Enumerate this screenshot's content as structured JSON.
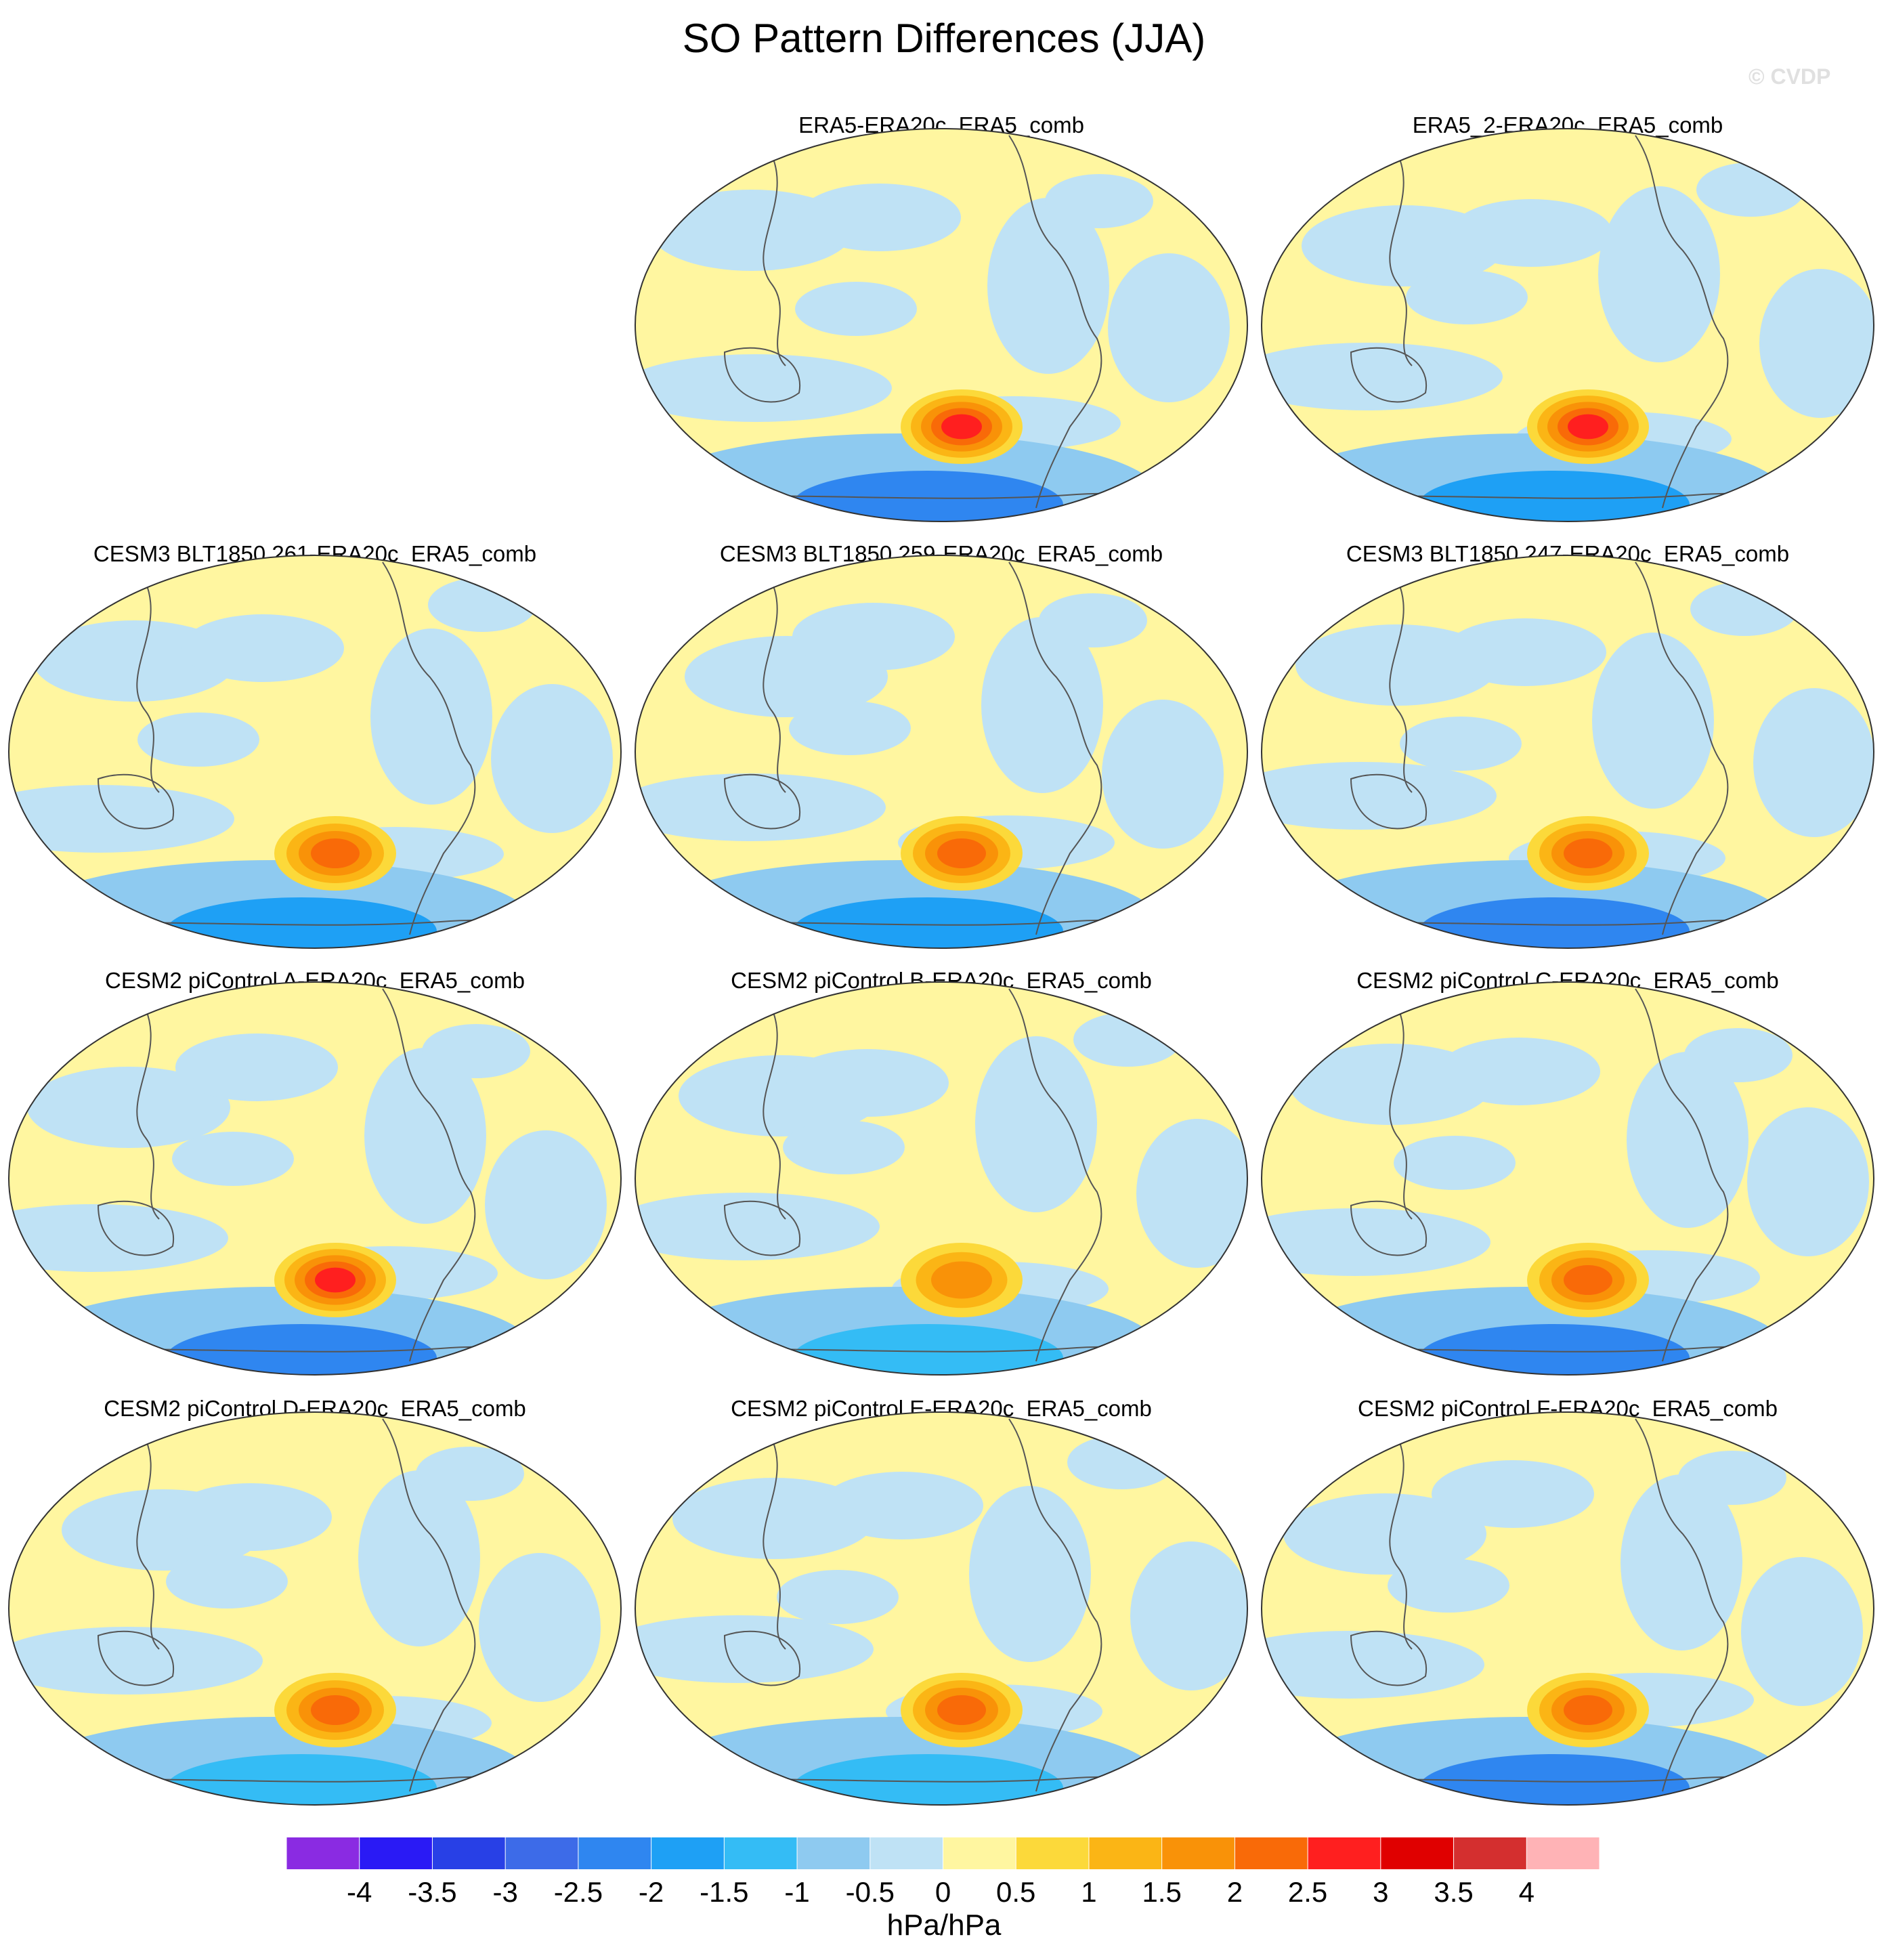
{
  "title": "SO Pattern Differences (JJA)",
  "copyright": "© CVDP",
  "chart_data": {
    "type": "heatmap",
    "title": "SO Pattern Differences (JJA)",
    "units": "hPa/hPa",
    "colorbar": {
      "tick_labels": [
        "-4",
        "-3.5",
        "-3",
        "-2.5",
        "-2",
        "-1.5",
        "-1",
        "-0.5",
        "0",
        "0.5",
        "1",
        "1.5",
        "2",
        "2.5",
        "3",
        "3.5",
        "4"
      ],
      "colors": [
        "#8a2be2",
        "#2a1af5",
        "#2840e6",
        "#3d6be8",
        "#2f86f0",
        "#1ea0f5",
        "#34bcf5",
        "#8ecaf0",
        "#bfe2f5",
        "#fff6a0",
        "#fcd93a",
        "#fbb515",
        "#f99208",
        "#f96a08",
        "#ff1f1f",
        "#e00000",
        "#d42f2f",
        "#ffb3b6"
      ]
    },
    "panels": [
      {
        "title": "ERA5-ERA20c_ERA5_comb",
        "peak_positive": 2.3,
        "peak_negative": -1.9
      },
      {
        "title": "ERA5_2-ERA20c_ERA5_comb",
        "peak_positive": 2.5,
        "peak_negative": -1.7
      },
      {
        "title": "CESM3 BLT1850 261-ERA20c_ERA5_comb",
        "peak_positive": 2.2,
        "peak_negative": -1.6
      },
      {
        "title": "CESM3 BLT1850 259-ERA20c_ERA5_comb",
        "peak_positive": 2.0,
        "peak_negative": -1.3
      },
      {
        "title": "CESM3 BLT1850 247-ERA20c_ERA5_comb",
        "peak_positive": 2.1,
        "peak_negative": -2.0
      },
      {
        "title": "CESM2 piControl A-ERA20c_ERA5_comb",
        "peak_positive": 2.3,
        "peak_negative": -1.8
      },
      {
        "title": "CESM2 piControl B-ERA20c_ERA5_comb",
        "peak_positive": 1.6,
        "peak_negative": -1.2
      },
      {
        "title": "CESM2 piControl C-ERA20c_ERA5_comb",
        "peak_positive": 2.2,
        "peak_negative": -1.8
      },
      {
        "title": "CESM2 piControl D-ERA20c_ERA5_comb",
        "peak_positive": 2.0,
        "peak_negative": -1.2
      },
      {
        "title": "CESM2 piControl E-ERA20c_ERA5_comb",
        "peak_positive": 1.9,
        "peak_negative": -1.1
      },
      {
        "title": "CESM2 piControl F-ERA20c_ERA5_comb",
        "peak_positive": 1.8,
        "peak_negative": -1.8
      }
    ]
  }
}
